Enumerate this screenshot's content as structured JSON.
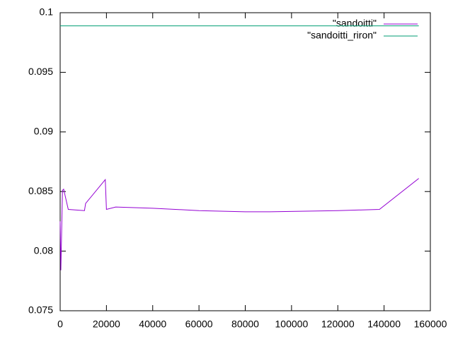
{
  "chart_data": {
    "type": "line",
    "series": [
      {
        "name": "\"sandoitti\"",
        "color": "#9400d3",
        "x": [
          0,
          300,
          1000,
          1500,
          3500,
          10500,
          11000,
          19500,
          20000,
          24000,
          40000,
          60000,
          80000,
          90000,
          120000,
          138000,
          155000
        ],
        "values": [
          0.0825,
          0.0784,
          0.0851,
          0.0852,
          0.0835,
          0.0834,
          0.084,
          0.086,
          0.0835,
          0.0837,
          0.0836,
          0.0834,
          0.0833,
          0.0833,
          0.0834,
          0.0835,
          0.0861
        ]
      },
      {
        "name": "\"sandoitti_riron\"",
        "color": "#009e73",
        "x": [
          0,
          155000
        ],
        "values": [
          0.0989,
          0.0989
        ]
      }
    ],
    "xlim": [
      0,
      160000
    ],
    "xticks": [
      0,
      20000,
      40000,
      60000,
      80000,
      100000,
      120000,
      140000,
      160000
    ],
    "ylim": [
      0.075,
      0.1
    ],
    "yticks": [
      0.075,
      0.08,
      0.085,
      0.09,
      0.095,
      0.1
    ],
    "legend": "top-right",
    "grid": false
  }
}
